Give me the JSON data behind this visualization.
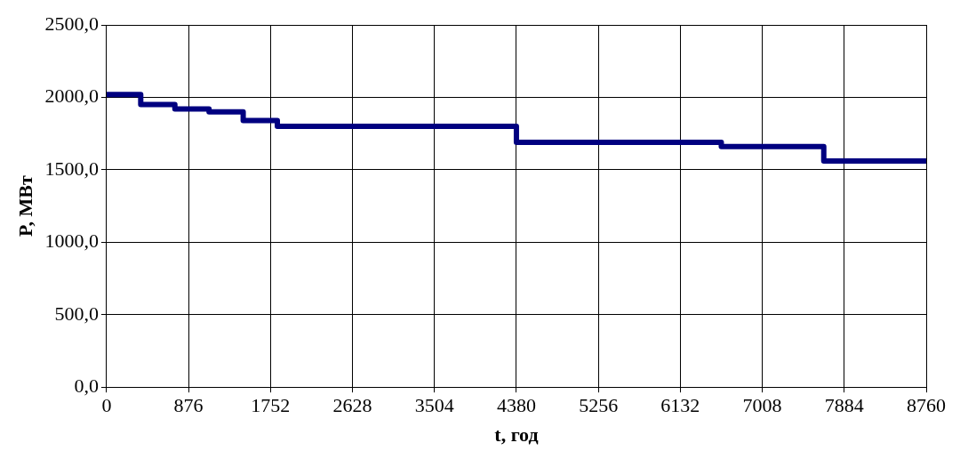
{
  "chart_data": {
    "type": "step",
    "xlabel": "t, год",
    "ylabel": "P, МВт",
    "x": [
      0,
      365,
      730,
      1095,
      1460,
      1825,
      4380,
      6570,
      7665,
      8760
    ],
    "series": [
      {
        "color": "#000080",
        "values": [
          2020,
          1950,
          1920,
          1900,
          1840,
          1800,
          1690,
          1660,
          1560,
          1560
        ]
      }
    ],
    "xlim": [
      0,
      8760
    ],
    "xticks": [
      0,
      876,
      1752,
      2628,
      3504,
      4380,
      5256,
      6132,
      7008,
      7884,
      8760
    ],
    "ylim": [
      0,
      2500
    ],
    "yticks": [
      {
        "value": 0,
        "label": "0,0"
      },
      {
        "value": 500,
        "label": "500,0"
      },
      {
        "value": 1000,
        "label": "1000,0"
      },
      {
        "value": 1500,
        "label": "1500,0"
      },
      {
        "value": 2000,
        "label": "2000,0"
      },
      {
        "value": 2500,
        "label": "2500,0"
      }
    ],
    "grid": true,
    "legend": false
  }
}
